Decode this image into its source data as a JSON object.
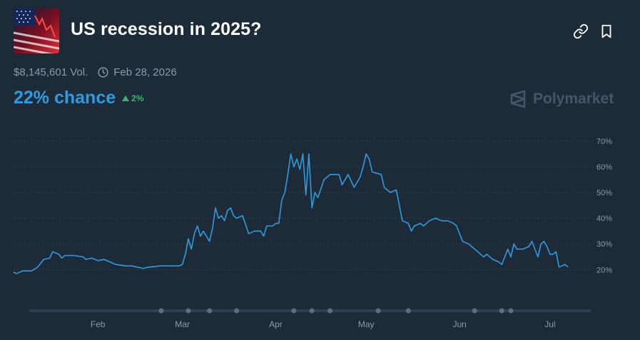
{
  "header": {
    "title": "US recession in 2025?",
    "volume": "$8,145,601 Vol.",
    "end_date": "Feb 28, 2026",
    "chance": "22% chance",
    "delta": "2%",
    "brand": "Polymarket"
  },
  "colors": {
    "background": "#1d2b39",
    "line": "#2e9bde",
    "delta_up": "#3db468",
    "grid": "#3a4a5c",
    "axis_text": "#8a9bad"
  },
  "icons": [
    "link-icon",
    "bookmark-icon",
    "clock-icon",
    "arrow-up-icon",
    "polymarket-logo-icon"
  ],
  "chart_data": {
    "type": "line",
    "title": "",
    "xlabel": "",
    "ylabel": "",
    "x_tick_labels": [
      "Feb",
      "Mar",
      "Apr",
      "May",
      "Jun",
      "Jul"
    ],
    "y_tick_labels": [
      "70%",
      "60%",
      "50%",
      "40%",
      "30%",
      "20%"
    ],
    "y_ticks": [
      70,
      60,
      50,
      40,
      30,
      20
    ],
    "ylim": [
      14,
      73
    ],
    "xlim": [
      "2025-01-04",
      "2025-07-15"
    ],
    "grid": true,
    "legend": "none",
    "series": [
      {
        "values": [
          [
            "2025-01-04",
            19
          ],
          [
            "2025-01-05",
            18.5
          ],
          [
            "2025-01-07",
            19.5
          ],
          [
            "2025-01-10",
            19.5
          ],
          [
            "2025-01-12",
            21
          ],
          [
            "2025-01-14",
            24
          ],
          [
            "2025-01-16",
            24.5
          ],
          [
            "2025-01-17",
            27
          ],
          [
            "2025-01-19",
            26
          ],
          [
            "2025-01-20",
            24.5
          ],
          [
            "2025-01-21",
            25.5
          ],
          [
            "2025-01-24",
            25.5
          ],
          [
            "2025-01-27",
            25
          ],
          [
            "2025-01-28",
            24
          ],
          [
            "2025-01-30",
            24.5
          ],
          [
            "2025-02-01",
            23.5
          ],
          [
            "2025-02-03",
            24
          ],
          [
            "2025-02-05",
            23
          ],
          [
            "2025-02-07",
            22
          ],
          [
            "2025-02-10",
            21.5
          ],
          [
            "2025-02-12",
            21.5
          ],
          [
            "2025-02-14",
            21
          ],
          [
            "2025-02-16",
            20.5
          ],
          [
            "2025-02-18",
            21
          ],
          [
            "2025-02-22",
            21.5
          ],
          [
            "2025-02-26",
            21.5
          ],
          [
            "2025-02-28",
            21.5
          ],
          [
            "2025-03-01",
            22
          ],
          [
            "2025-03-02",
            26
          ],
          [
            "2025-03-03",
            32
          ],
          [
            "2025-03-04",
            28
          ],
          [
            "2025-03-05",
            34
          ],
          [
            "2025-03-06",
            37
          ],
          [
            "2025-03-07",
            33
          ],
          [
            "2025-03-08",
            35
          ],
          [
            "2025-03-10",
            31
          ],
          [
            "2025-03-11",
            36
          ],
          [
            "2025-03-12",
            44
          ],
          [
            "2025-03-13",
            40
          ],
          [
            "2025-03-14",
            41
          ],
          [
            "2025-03-15",
            39
          ],
          [
            "2025-03-16",
            43
          ],
          [
            "2025-03-17",
            44
          ],
          [
            "2025-03-18",
            41
          ],
          [
            "2025-03-19",
            40
          ],
          [
            "2025-03-21",
            41
          ],
          [
            "2025-03-23",
            34
          ],
          [
            "2025-03-25",
            35
          ],
          [
            "2025-03-27",
            35
          ],
          [
            "2025-03-28",
            33
          ],
          [
            "2025-03-29",
            37
          ],
          [
            "2025-03-31",
            37
          ],
          [
            "2025-04-01",
            38
          ],
          [
            "2025-04-02",
            38
          ],
          [
            "2025-04-03",
            47
          ],
          [
            "2025-04-04",
            50
          ],
          [
            "2025-04-05",
            57
          ],
          [
            "2025-04-06",
            65
          ],
          [
            "2025-04-07",
            60
          ],
          [
            "2025-04-08",
            63
          ],
          [
            "2025-04-09",
            59
          ],
          [
            "2025-04-10",
            65
          ],
          [
            "2025-04-11",
            49
          ],
          [
            "2025-04-12",
            65
          ],
          [
            "2025-04-13",
            44
          ],
          [
            "2025-04-14",
            50
          ],
          [
            "2025-04-15",
            48
          ],
          [
            "2025-04-17",
            55
          ],
          [
            "2025-04-19",
            57
          ],
          [
            "2025-04-22",
            57
          ],
          [
            "2025-04-23",
            53
          ],
          [
            "2025-04-25",
            57
          ],
          [
            "2025-04-27",
            52
          ],
          [
            "2025-04-29",
            56
          ],
          [
            "2025-04-30",
            60
          ],
          [
            "2025-05-01",
            65
          ],
          [
            "2025-05-02",
            63
          ],
          [
            "2025-05-03",
            58
          ],
          [
            "2025-05-06",
            57
          ],
          [
            "2025-05-07",
            52
          ],
          [
            "2025-05-09",
            50
          ],
          [
            "2025-05-11",
            51
          ],
          [
            "2025-05-12",
            45
          ],
          [
            "2025-05-13",
            39
          ],
          [
            "2025-05-15",
            38
          ],
          [
            "2025-05-16",
            35
          ],
          [
            "2025-05-17",
            37
          ],
          [
            "2025-05-19",
            38
          ],
          [
            "2025-05-20",
            37
          ],
          [
            "2025-05-22",
            39
          ],
          [
            "2025-05-24",
            40
          ],
          [
            "2025-05-26",
            39
          ],
          [
            "2025-05-28",
            39
          ],
          [
            "2025-05-30",
            38
          ],
          [
            "2025-05-31",
            37
          ],
          [
            "2025-06-01",
            34
          ],
          [
            "2025-06-02",
            31
          ],
          [
            "2025-06-04",
            30
          ],
          [
            "2025-06-06",
            28
          ],
          [
            "2025-06-08",
            26
          ],
          [
            "2025-06-09",
            25
          ],
          [
            "2025-06-10",
            26
          ],
          [
            "2025-06-12",
            24
          ],
          [
            "2025-06-14",
            23
          ],
          [
            "2025-06-15",
            22
          ],
          [
            "2025-06-17",
            28
          ],
          [
            "2025-06-18",
            25
          ],
          [
            "2025-06-19",
            30
          ],
          [
            "2025-06-20",
            28
          ],
          [
            "2025-06-22",
            28
          ],
          [
            "2025-06-24",
            29
          ],
          [
            "2025-06-25",
            31
          ],
          [
            "2025-06-26",
            28
          ],
          [
            "2025-06-27",
            25
          ],
          [
            "2025-06-28",
            30
          ],
          [
            "2025-06-29",
            31
          ],
          [
            "2025-06-30",
            29
          ],
          [
            "2025-07-01",
            26
          ],
          [
            "2025-07-02",
            26
          ],
          [
            "2025-07-03",
            27
          ],
          [
            "2025-07-04",
            21
          ],
          [
            "2025-07-06",
            22
          ],
          [
            "2025-07-07",
            21
          ]
        ]
      }
    ]
  }
}
